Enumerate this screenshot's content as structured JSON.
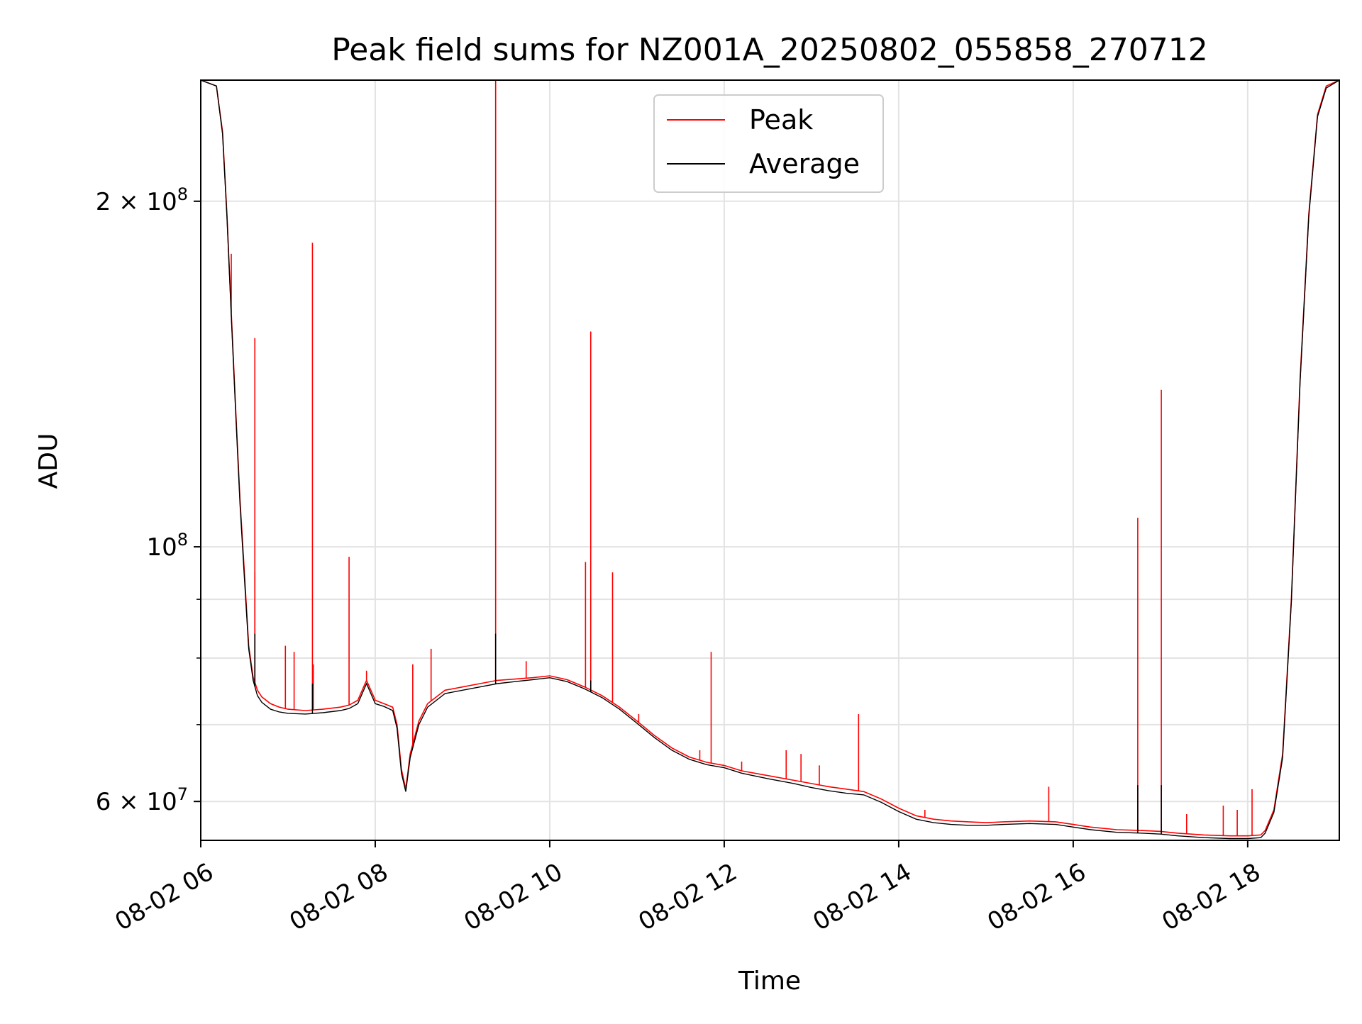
{
  "chart_data": {
    "type": "line",
    "title": "Peak field sums for NZ001A_20250802_055858_270712",
    "xlabel": "Time",
    "ylabel": "ADU",
    "yscale": "log",
    "x_unit": "hours of 2025-08-02",
    "xlim": [
      6.0,
      19.05
    ],
    "ylim": [
      55500000,
      255000000
    ],
    "grid": true,
    "legend_position": "top-center",
    "x_ticks": [
      {
        "value": 6,
        "label": "08-02 06"
      },
      {
        "value": 8,
        "label": "08-02 08"
      },
      {
        "value": 10,
        "label": "08-02 10"
      },
      {
        "value": 12,
        "label": "08-02 12"
      },
      {
        "value": 14,
        "label": "08-02 14"
      },
      {
        "value": 16,
        "label": "08-02 16"
      },
      {
        "value": 18,
        "label": "08-02 18"
      }
    ],
    "y_major_ticks": [
      {
        "value": 200000000,
        "base": "2 × 10",
        "exp": "8"
      },
      {
        "value": 100000000,
        "base": "10",
        "exp": "8"
      },
      {
        "value": 60000000,
        "base": "6 × 10",
        "exp": "7"
      }
    ],
    "y_minor_ticks": [
      70000000,
      80000000,
      90000000
    ],
    "series": [
      {
        "name": "Peak",
        "color": "#ff0000",
        "x": [
          6.0,
          6.18,
          6.25,
          6.3,
          6.35,
          6.4,
          6.45,
          6.5,
          6.55,
          6.6,
          6.65,
          6.7,
          6.8,
          6.9,
          7.0,
          7.2,
          7.4,
          7.6,
          7.7,
          7.8,
          7.9,
          7.95,
          8.0,
          8.1,
          8.2,
          8.25,
          8.3,
          8.35,
          8.4,
          8.5,
          8.6,
          8.8,
          9.0,
          9.2,
          9.4,
          9.6,
          9.8,
          10.0,
          10.2,
          10.4,
          10.6,
          10.8,
          11.0,
          11.2,
          11.4,
          11.6,
          11.8,
          12.0,
          12.2,
          12.5,
          12.8,
          13.0,
          13.2,
          13.4,
          13.6,
          13.8,
          14.0,
          14.2,
          14.4,
          14.6,
          14.8,
          15.0,
          15.2,
          15.5,
          15.8,
          16.0,
          16.2,
          16.5,
          16.8,
          17.0,
          17.2,
          17.5,
          17.8,
          18.0,
          18.15,
          18.2,
          18.3,
          18.4,
          18.5,
          18.6,
          18.7,
          18.8,
          18.9,
          19.05
        ],
        "y": [
          255000000,
          252000000,
          230000000,
          195000000,
          160000000,
          132000000,
          110000000,
          95000000,
          82000000,
          77000000,
          75000000,
          74000000,
          73000000,
          72500000,
          72200000,
          72000000,
          72200000,
          72500000,
          72800000,
          73500000,
          76500000,
          75000000,
          73500000,
          73000000,
          72500000,
          70000000,
          64000000,
          61500000,
          66000000,
          70500000,
          73000000,
          75000000,
          75500000,
          76000000,
          76500000,
          76700000,
          76900000,
          77200000,
          76600000,
          75500000,
          74200000,
          72500000,
          70500000,
          68500000,
          66800000,
          65600000,
          64900000,
          64500000,
          63800000,
          63200000,
          62600000,
          62200000,
          61800000,
          61500000,
          61200000,
          60300000,
          59200000,
          58300000,
          57900000,
          57700000,
          57600000,
          57500000,
          57600000,
          57700000,
          57600000,
          57300000,
          57000000,
          56700000,
          56600000,
          56500000,
          56300000,
          56100000,
          56000000,
          56000000,
          56100000,
          56600000,
          59000000,
          66000000,
          90000000,
          140000000,
          195000000,
          238000000,
          252000000,
          255000000
        ],
        "spikes": [
          {
            "x": 6.35,
            "y": 180000000
          },
          {
            "x": 6.62,
            "y": 152000000
          },
          {
            "x": 6.62,
            "y": 95000000
          },
          {
            "x": 6.97,
            "y": 82000000
          },
          {
            "x": 7.07,
            "y": 81000000
          },
          {
            "x": 7.28,
            "y": 184000000
          },
          {
            "x": 7.29,
            "y": 79000000
          },
          {
            "x": 7.7,
            "y": 98000000
          },
          {
            "x": 7.9,
            "y": 78000000
          },
          {
            "x": 8.43,
            "y": 79000000
          },
          {
            "x": 8.64,
            "y": 81500000
          },
          {
            "x": 9.38,
            "y": 255000000
          },
          {
            "x": 9.73,
            "y": 79500000
          },
          {
            "x": 10.41,
            "y": 97000000
          },
          {
            "x": 10.47,
            "y": 154000000
          },
          {
            "x": 10.72,
            "y": 95000000
          },
          {
            "x": 11.02,
            "y": 71500000
          },
          {
            "x": 11.72,
            "y": 66500000
          },
          {
            "x": 11.85,
            "y": 81000000
          },
          {
            "x": 12.2,
            "y": 65000000
          },
          {
            "x": 12.71,
            "y": 66500000
          },
          {
            "x": 12.88,
            "y": 66000000
          },
          {
            "x": 13.09,
            "y": 64500000
          },
          {
            "x": 13.54,
            "y": 71500000
          },
          {
            "x": 14.3,
            "y": 59000000
          },
          {
            "x": 15.72,
            "y": 61800000
          },
          {
            "x": 16.74,
            "y": 106000000
          },
          {
            "x": 17.01,
            "y": 137000000
          },
          {
            "x": 17.3,
            "y": 58500000
          },
          {
            "x": 17.72,
            "y": 59500000
          },
          {
            "x": 17.88,
            "y": 59000000
          },
          {
            "x": 18.05,
            "y": 61500000
          }
        ]
      },
      {
        "name": "Average",
        "color": "#000000",
        "x": [
          6.0,
          6.18,
          6.25,
          6.3,
          6.35,
          6.4,
          6.45,
          6.5,
          6.55,
          6.6,
          6.65,
          6.7,
          6.8,
          6.9,
          7.0,
          7.2,
          7.4,
          7.6,
          7.7,
          7.8,
          7.9,
          7.95,
          8.0,
          8.1,
          8.2,
          8.25,
          8.3,
          8.35,
          8.4,
          8.5,
          8.6,
          8.8,
          9.0,
          9.2,
          9.4,
          9.6,
          9.8,
          10.0,
          10.2,
          10.4,
          10.6,
          10.8,
          11.0,
          11.2,
          11.4,
          11.6,
          11.8,
          12.0,
          12.2,
          12.5,
          12.8,
          13.0,
          13.2,
          13.4,
          13.6,
          13.8,
          14.0,
          14.2,
          14.4,
          14.6,
          14.8,
          15.0,
          15.2,
          15.5,
          15.8,
          16.0,
          16.2,
          16.5,
          16.8,
          17.0,
          17.2,
          17.5,
          17.8,
          18.0,
          18.15,
          18.2,
          18.3,
          18.4,
          18.5,
          18.6,
          18.7,
          18.8,
          18.9,
          19.05
        ],
        "y": [
          255000000,
          252000000,
          229000000,
          194000000,
          159000000,
          131000000,
          109000000,
          94000000,
          81500000,
          76500000,
          74200000,
          73200000,
          72200000,
          71800000,
          71600000,
          71500000,
          71700000,
          72000000,
          72300000,
          73000000,
          76000000,
          74500000,
          73000000,
          72600000,
          72000000,
          69500000,
          63500000,
          61200000,
          65500000,
          70000000,
          72500000,
          74500000,
          75000000,
          75500000,
          76000000,
          76300000,
          76600000,
          76900000,
          76300000,
          75200000,
          73900000,
          72200000,
          70200000,
          68200000,
          66500000,
          65300000,
          64600000,
          64200000,
          63500000,
          62800000,
          62200000,
          61700000,
          61300000,
          61000000,
          60800000,
          59900000,
          58800000,
          57900000,
          57500000,
          57300000,
          57200000,
          57200000,
          57300000,
          57400000,
          57300000,
          57000000,
          56700000,
          56400000,
          56300000,
          56200000,
          56000000,
          55800000,
          55700000,
          55700000,
          55800000,
          56300000,
          58700000,
          65500000,
          89500000,
          139000000,
          194000000,
          237000000,
          251000000,
          255000000
        ],
        "spikes": [
          {
            "x": 6.62,
            "y": 84000000
          },
          {
            "x": 7.28,
            "y": 76000000
          },
          {
            "x": 9.38,
            "y": 84000000
          },
          {
            "x": 10.47,
            "y": 76500000
          },
          {
            "x": 16.74,
            "y": 62000000
          },
          {
            "x": 17.01,
            "y": 62000000
          }
        ]
      }
    ]
  }
}
